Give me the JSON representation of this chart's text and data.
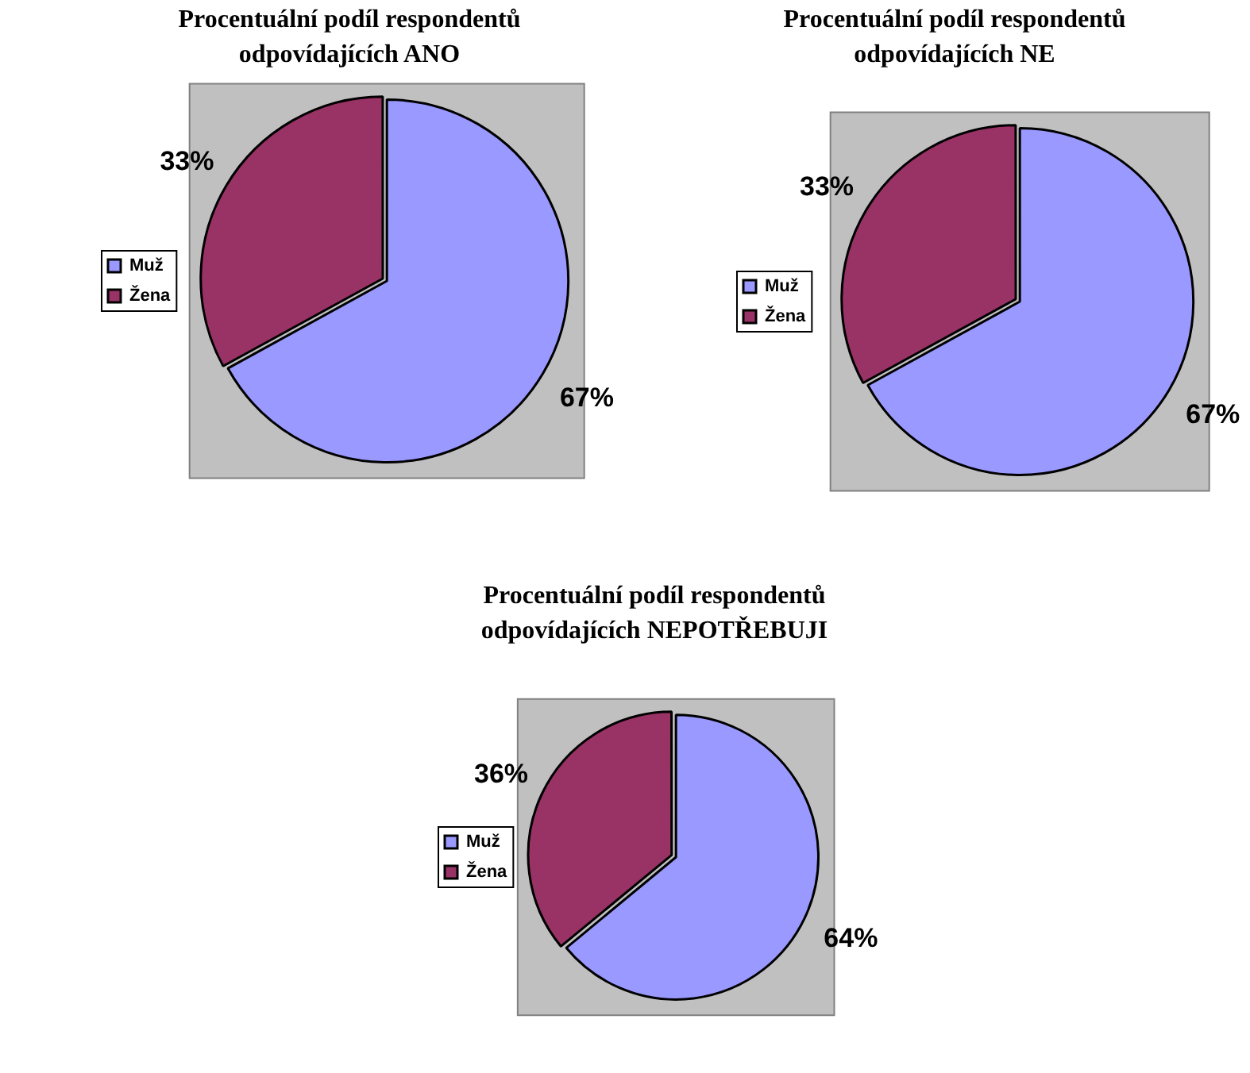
{
  "chart_data": [
    {
      "type": "pie",
      "title": "Procentuální podíl respondentů\nodpovídajících ANO",
      "categories": [
        "Muž",
        "Žena"
      ],
      "values": [
        67,
        33
      ],
      "colors": [
        "#9999ff",
        "#993366"
      ],
      "value_labels": [
        "67%",
        "33%"
      ],
      "legend": "left"
    },
    {
      "type": "pie",
      "title": "Procentuální podíl respondentů\nodpovídajících NE",
      "categories": [
        "Muž",
        "Žena"
      ],
      "values": [
        67,
        33
      ],
      "colors": [
        "#9999ff",
        "#993366"
      ],
      "value_labels": [
        "67%",
        "33%"
      ],
      "legend": "left"
    },
    {
      "type": "pie",
      "title": "Procentuální podíl respondentů\nodpovídajících NEPOTŘEBUJI",
      "categories": [
        "Muž",
        "Žena"
      ],
      "values": [
        64,
        36
      ],
      "colors": [
        "#9999ff",
        "#993366"
      ],
      "value_labels": [
        "64%",
        "36%"
      ],
      "legend": "left"
    }
  ]
}
